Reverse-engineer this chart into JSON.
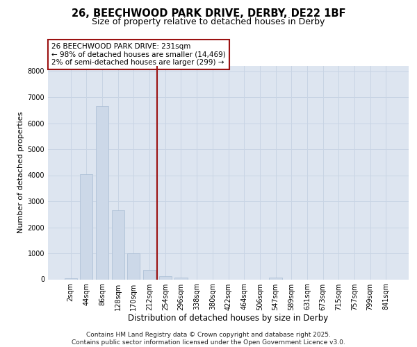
{
  "title_line1": "26, BEECHWOOD PARK DRIVE, DERBY, DE22 1BF",
  "title_line2": "Size of property relative to detached houses in Derby",
  "xlabel": "Distribution of detached houses by size in Derby",
  "ylabel": "Number of detached properties",
  "categories": [
    "2sqm",
    "44sqm",
    "86sqm",
    "128sqm",
    "170sqm",
    "212sqm",
    "254sqm",
    "296sqm",
    "338sqm",
    "380sqm",
    "422sqm",
    "464sqm",
    "506sqm",
    "547sqm",
    "589sqm",
    "631sqm",
    "673sqm",
    "715sqm",
    "757sqm",
    "799sqm",
    "841sqm"
  ],
  "values": [
    50,
    4050,
    6650,
    2650,
    1000,
    360,
    130,
    60,
    0,
    0,
    0,
    0,
    0,
    80,
    0,
    0,
    0,
    0,
    0,
    0,
    0
  ],
  "bar_color": "#ccd8e8",
  "bar_edge_color": "#a8bcd4",
  "vline_color": "#9b1111",
  "vline_x": 5.5,
  "annotation_box_text": "26 BEECHWOOD PARK DRIVE: 231sqm\n← 98% of detached houses are smaller (14,469)\n2% of semi-detached houses are larger (299) →",
  "annotation_box_color": "#9b1111",
  "annotation_box_bg": "#ffffff",
  "ylim": [
    0,
    8200
  ],
  "yticks": [
    0,
    1000,
    2000,
    3000,
    4000,
    5000,
    6000,
    7000,
    8000
  ],
  "grid_color": "#c8d4e4",
  "background_color": "#dde5f0",
  "footer_text": "Contains HM Land Registry data © Crown copyright and database right 2025.\nContains public sector information licensed under the Open Government Licence v3.0.",
  "title_fontsize": 10.5,
  "subtitle_fontsize": 9,
  "tick_fontsize": 7,
  "ylabel_fontsize": 8,
  "xlabel_fontsize": 8.5,
  "annotation_fontsize": 7.5,
  "footer_fontsize": 6.5
}
